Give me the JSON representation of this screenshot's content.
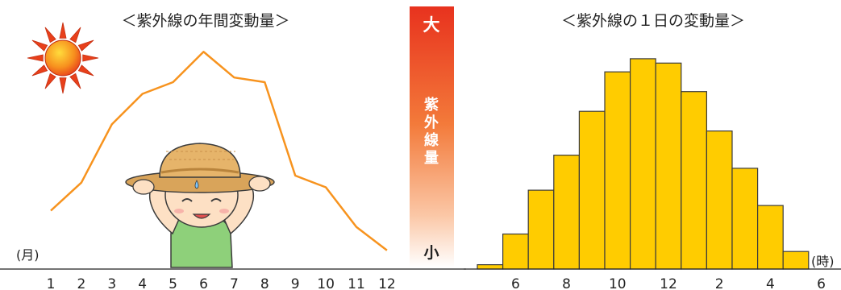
{
  "chart_data": [
    {
      "type": "line",
      "title": "＜紫外線の年間変動量＞",
      "xlabel": "(月)",
      "ylabel": "",
      "categories": [
        "1",
        "2",
        "3",
        "4",
        "5",
        "6",
        "7",
        "8",
        "9",
        "10",
        "11",
        "12"
      ],
      "values": [
        25,
        37,
        62,
        75,
        80,
        93,
        82,
        80,
        40,
        35,
        18,
        8
      ],
      "ylim": [
        0,
        100
      ],
      "grid": false,
      "line_color": "#f7931e"
    },
    {
      "type": "bar",
      "title": "＜紫外線の１日の変動量＞",
      "xlabel": "(時)",
      "ylabel": "",
      "hours": [
        5,
        6,
        7,
        8,
        9,
        10,
        11,
        12,
        13,
        14,
        15,
        16,
        17,
        18
      ],
      "tick_labels": [
        "6",
        "8",
        "10",
        "12",
        "2",
        "4",
        "6"
      ],
      "tick_hours": [
        6,
        8,
        10,
        12,
        14,
        16,
        18
      ],
      "values": [
        2,
        16,
        36,
        52,
        72,
        90,
        96,
        94,
        81,
        63,
        46,
        29,
        8,
        0
      ],
      "ylim": [
        0,
        100
      ],
      "grid": false,
      "bar_color": "#ffcc00"
    }
  ],
  "scale_bar": {
    "top_label": "大",
    "middle_label": "紫外線量",
    "bottom_label": "小",
    "color_top": "#e8321e",
    "color_bottom": "#ffffff"
  },
  "illustrations": [
    "sun-icon",
    "child-with-hat-icon"
  ]
}
